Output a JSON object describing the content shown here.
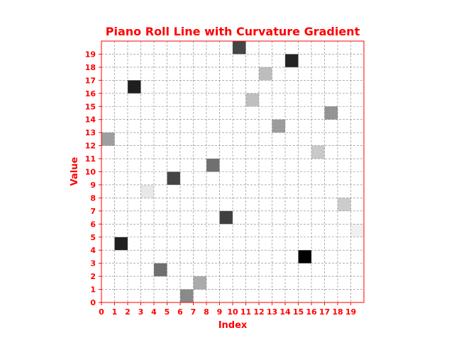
{
  "chart_data": {
    "type": "heatmap",
    "title": "Piano Roll Line with Curvature Gradient",
    "xlabel": "Index",
    "ylabel": "Value",
    "xlim": [
      0,
      20
    ],
    "ylim": [
      0,
      20
    ],
    "x_ticks": [
      "0",
      "1",
      "2",
      "3",
      "4",
      "5",
      "6",
      "7",
      "8",
      "9",
      "10",
      "11",
      "12",
      "13",
      "14",
      "15",
      "16",
      "17",
      "18",
      "19"
    ],
    "y_ticks": [
      "0",
      "1",
      "2",
      "3",
      "4",
      "5",
      "6",
      "7",
      "8",
      "9",
      "10",
      "11",
      "12",
      "13",
      "14",
      "15",
      "16",
      "17",
      "18",
      "19"
    ],
    "grid": true,
    "colormap": "gray_r",
    "accent_color": "#ff0000",
    "cells": [
      {
        "x": 0,
        "y": 12,
        "shade": 0.38
      },
      {
        "x": 1,
        "y": 4,
        "shade": 0.88
      },
      {
        "x": 2,
        "y": 16,
        "shade": 0.88
      },
      {
        "x": 3,
        "y": 8,
        "shade": 0.09
      },
      {
        "x": 4,
        "y": 2,
        "shade": 0.56
      },
      {
        "x": 5,
        "y": 9,
        "shade": 0.73
      },
      {
        "x": 6,
        "y": 0,
        "shade": 0.46
      },
      {
        "x": 7,
        "y": 1,
        "shade": 0.33
      },
      {
        "x": 8,
        "y": 10,
        "shade": 0.56
      },
      {
        "x": 9,
        "y": 6,
        "shade": 0.75
      },
      {
        "x": 10,
        "y": 19,
        "shade": 0.73
      },
      {
        "x": 11,
        "y": 15,
        "shade": 0.25
      },
      {
        "x": 12,
        "y": 17,
        "shade": 0.26
      },
      {
        "x": 13,
        "y": 13,
        "shade": 0.39
      },
      {
        "x": 14,
        "y": 18,
        "shade": 0.86
      },
      {
        "x": 15,
        "y": 3,
        "shade": 1.0
      },
      {
        "x": 16,
        "y": 11,
        "shade": 0.21
      },
      {
        "x": 17,
        "y": 14,
        "shade": 0.42
      },
      {
        "x": 18,
        "y": 7,
        "shade": 0.2
      },
      {
        "x": 19,
        "y": 5,
        "shade": 0.06
      }
    ]
  }
}
